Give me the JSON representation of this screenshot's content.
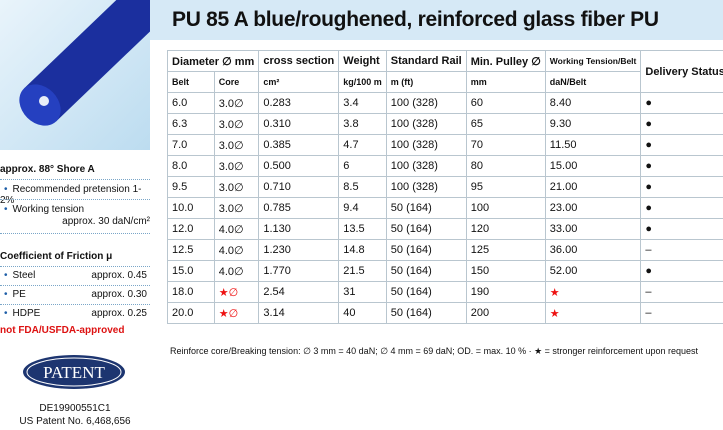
{
  "title": "PU 85 A blue/roughened, reinforced glass fiber PU",
  "properties": {
    "hardness": "approx. 88° Shore A",
    "items": [
      {
        "label": "Recommended pretension 1-2%"
      },
      {
        "label": "Working tension",
        "value": "approx. 30 daN/cm²"
      }
    ]
  },
  "friction": {
    "title": "Coefficient of Friction μ",
    "rows": [
      [
        "Steel",
        "approx. 0.45"
      ],
      [
        "PE",
        "approx. 0.30"
      ],
      [
        "HDPE",
        "approx. 0.25"
      ]
    ]
  },
  "fda_note": "not FDA/USFDA-approved",
  "patent": {
    "badge": "PATENT",
    "numbers": [
      "DE19900551C1",
      "US Patent No. 6,468,656"
    ]
  },
  "table": {
    "header": [
      "Diameter ∅ mm",
      "cross section",
      "Weight",
      "Standard Rail",
      "Min. Pulley ∅",
      "Working Tension/Belt",
      "Delivery Status"
    ],
    "subheader": [
      "Belt",
      "Core",
      "cm²",
      "kg/100 m",
      "m (ft)",
      "mm",
      "daN/Belt"
    ],
    "rows": [
      [
        "6.0",
        "3.0∅",
        "0.283",
        "3.4",
        "100 (328)",
        "60",
        "8.40",
        "●"
      ],
      [
        "6.3",
        "3.0∅",
        "0.310",
        "3.8",
        "100 (328)",
        "65",
        "9.30",
        "●"
      ],
      [
        "7.0",
        "3.0∅",
        "0.385",
        "4.7",
        "100 (328)",
        "70",
        "11.50",
        "●"
      ],
      [
        "8.0",
        "3.0∅",
        "0.500",
        "6",
        "100 (328)",
        "80",
        "15.00",
        "●"
      ],
      [
        "9.5",
        "3.0∅",
        "0.710",
        "8.5",
        "100 (328)",
        "95",
        "21.00",
        "●"
      ],
      [
        "10.0",
        "3.0∅",
        "0.785",
        "9.4",
        "50 (164)",
        "100",
        "23.00",
        "●"
      ],
      [
        "12.0",
        "4.0∅",
        "1.130",
        "13.5",
        "50 (164)",
        "120",
        "33.00",
        "●"
      ],
      [
        "12.5",
        "4.0∅",
        "1.230",
        "14.8",
        "50 (164)",
        "125",
        "36.00",
        "–"
      ],
      [
        "15.0",
        "4.0∅",
        "1.770",
        "21.5",
        "50 (164)",
        "150",
        "52.00",
        "●"
      ],
      [
        "18.0",
        "★∅",
        "2.54",
        "31",
        "50 (164)",
        "190",
        "★",
        "–"
      ],
      [
        "20.0",
        "★∅",
        "3.14",
        "40",
        "50 (164)",
        "200",
        "★",
        "–"
      ]
    ]
  },
  "footnote": "Reinforce core/Breaking tension: ∅ 3 mm = 40 daN; ∅ 4 mm = 69 daN; OD. = max. 10 % · ★ = stronger reinforcement upon request"
}
